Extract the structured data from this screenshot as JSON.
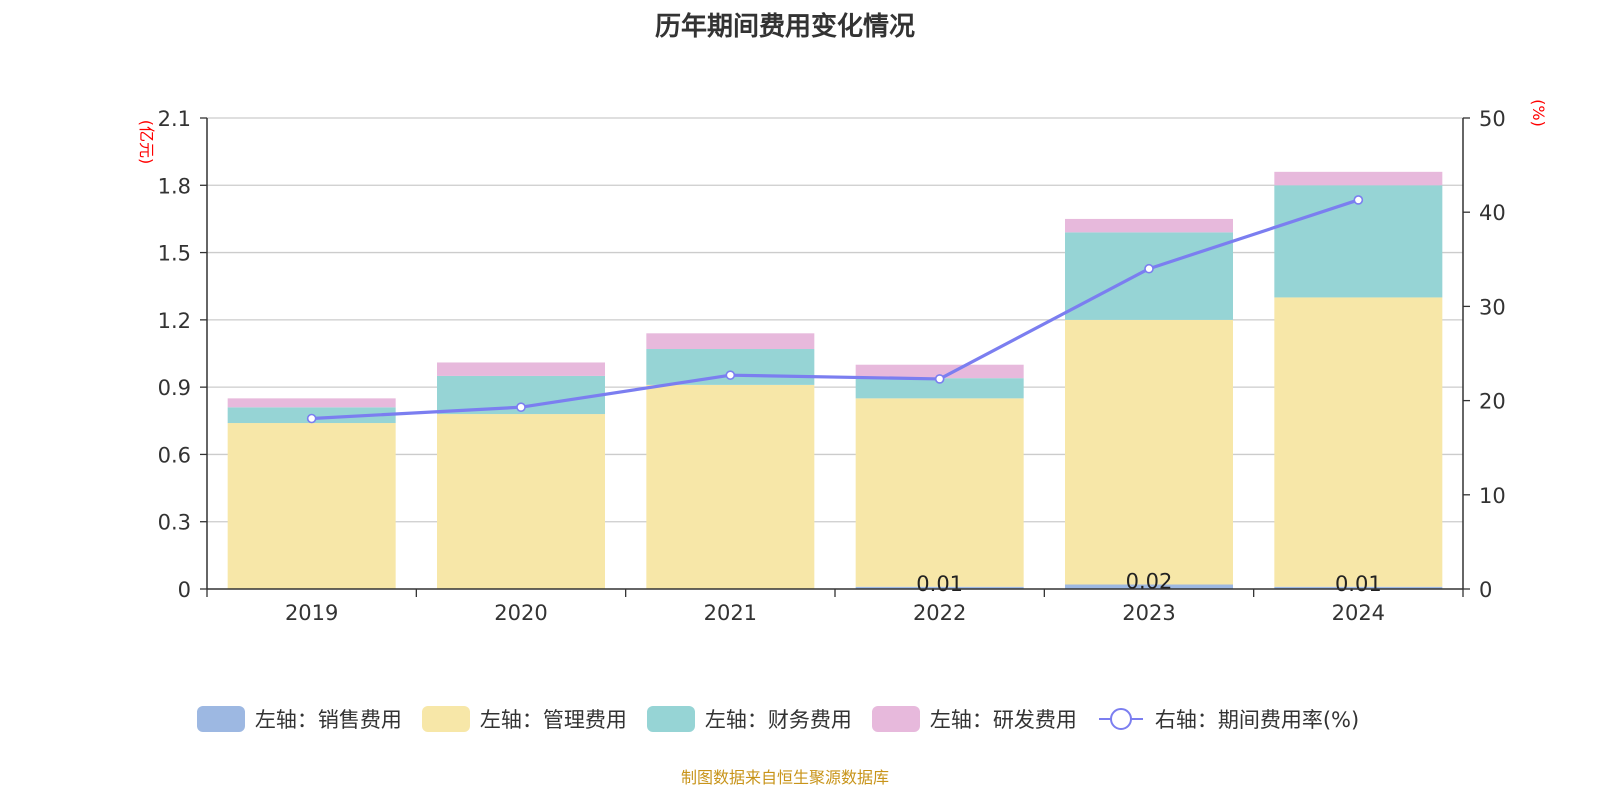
{
  "chart_data": {
    "type": "bar",
    "title": "历年期间费用变化情况",
    "categories": [
      "2019",
      "2020",
      "2021",
      "2022",
      "2023",
      "2024"
    ],
    "left_axis": {
      "unit": "(亿元)",
      "ylim": [
        0,
        2.1
      ],
      "ticks": [
        "0",
        "0.3",
        "0.6",
        "0.9",
        "1.2",
        "1.5",
        "1.8",
        "2.1"
      ]
    },
    "right_axis": {
      "unit": "(%)",
      "ylim": [
        0,
        50
      ],
      "ticks": [
        "0",
        "10",
        "20",
        "30",
        "40",
        "50"
      ]
    },
    "series": [
      {
        "name": "左轴：销售费用",
        "type": "bar",
        "stack": "left",
        "color": "#9db8e2",
        "values": [
          0,
          0,
          0,
          0.01,
          0.02,
          0.01
        ],
        "labels": [
          "",
          "",
          "",
          "0.01",
          "0.02",
          "0.01"
        ]
      },
      {
        "name": "左轴：管理费用",
        "type": "bar",
        "stack": "left",
        "color": "#f7e7a8",
        "values": [
          0.74,
          0.78,
          0.91,
          0.84,
          1.18,
          1.29
        ]
      },
      {
        "name": "左轴：财务费用",
        "type": "bar",
        "stack": "left",
        "color": "#96d4d5",
        "values": [
          0.07,
          0.17,
          0.16,
          0.09,
          0.39,
          0.5
        ]
      },
      {
        "name": "左轴：研发费用",
        "type": "bar",
        "stack": "left",
        "color": "#e7b9dc",
        "values": [
          0.04,
          0.06,
          0.07,
          0.06,
          0.06,
          0.06
        ]
      },
      {
        "name": "右轴：期间费用率(%)",
        "type": "line",
        "axis": "right",
        "color": "#7b7ef0",
        "values": [
          18.1,
          19.3,
          22.7,
          22.3,
          34.0,
          41.3
        ]
      }
    ],
    "grid": true,
    "legend_position": "bottom"
  },
  "footer": {
    "source": "制图数据来自恒生聚源数据库"
  },
  "colors": {
    "axis_unit": "#ff0000",
    "source_text": "#c8941a"
  }
}
